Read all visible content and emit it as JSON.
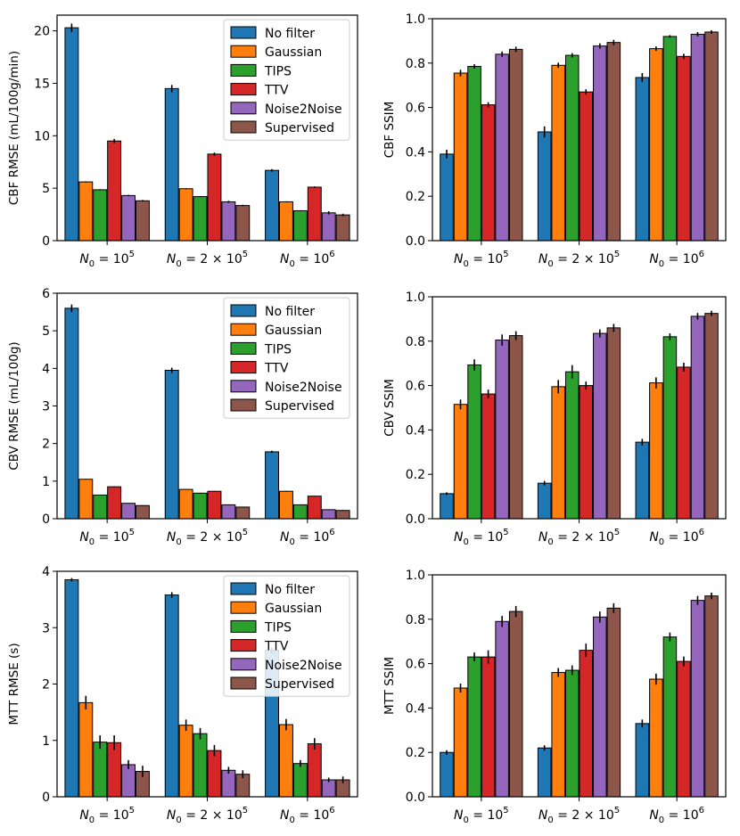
{
  "colors": {
    "No filter": "#1f77b4",
    "Gaussian": "#ff7f0e",
    "TIPS": "#2ca02c",
    "TTV": "#d62728",
    "Noise2Noise": "#9467bd",
    "Supervised": "#8c564b"
  },
  "chart_data": [
    {
      "type": "bar",
      "ylabel": "CBF RMSE (mL/100g/min)",
      "ylim": [
        0,
        21.5
      ],
      "yticks": [
        0,
        5,
        10,
        15,
        20
      ],
      "yticklabels": [
        "0",
        "5",
        "10",
        "15",
        "20"
      ],
      "categories": [
        "N0=10^5",
        "N0=2x10^5",
        "N0=10^6"
      ],
      "legend": "top-right",
      "series": [
        {
          "name": "No filter",
          "values": [
            20.3,
            14.5,
            6.7
          ],
          "errors": [
            0.4,
            0.35,
            0.12
          ]
        },
        {
          "name": "Gaussian",
          "values": [
            5.6,
            4.95,
            3.7
          ],
          "errors": [
            0.05,
            0.05,
            0.05
          ]
        },
        {
          "name": "TIPS",
          "values": [
            4.85,
            4.2,
            2.85
          ],
          "errors": [
            0.05,
            0.05,
            0.05
          ]
        },
        {
          "name": "TTV",
          "values": [
            9.5,
            8.25,
            5.1
          ],
          "errors": [
            0.2,
            0.15,
            0.07
          ]
        },
        {
          "name": "Noise2Noise",
          "values": [
            4.3,
            3.7,
            2.65
          ],
          "errors": [
            0.07,
            0.1,
            0.15
          ]
        },
        {
          "name": "Supervised",
          "values": [
            3.8,
            3.35,
            2.45
          ],
          "errors": [
            0.08,
            0.07,
            0.12
          ]
        }
      ]
    },
    {
      "type": "bar",
      "ylabel": "CBF SSIM",
      "ylim": [
        0,
        1.0
      ],
      "yticks": [
        0,
        0.2,
        0.4,
        0.6,
        0.8,
        1.0
      ],
      "yticklabels": [
        "0.0",
        "0.2",
        "0.4",
        "0.6",
        "0.8",
        "1.0"
      ],
      "categories": [
        "N0=10^5",
        "N0=2x10^5",
        "N0=10^6"
      ],
      "legend": "none",
      "series": [
        {
          "name": "No filter",
          "values": [
            0.39,
            0.49,
            0.735
          ],
          "errors": [
            0.02,
            0.025,
            0.02
          ]
        },
        {
          "name": "Gaussian",
          "values": [
            0.755,
            0.79,
            0.865
          ],
          "errors": [
            0.015,
            0.012,
            0.01
          ]
        },
        {
          "name": "TIPS",
          "values": [
            0.785,
            0.835,
            0.92
          ],
          "errors": [
            0.01,
            0.01,
            0.006
          ]
        },
        {
          "name": "TTV",
          "values": [
            0.612,
            0.67,
            0.83
          ],
          "errors": [
            0.012,
            0.012,
            0.012
          ]
        },
        {
          "name": "Noise2Noise",
          "values": [
            0.84,
            0.877,
            0.93
          ],
          "errors": [
            0.012,
            0.012,
            0.01
          ]
        },
        {
          "name": "Supervised",
          "values": [
            0.862,
            0.893,
            0.94
          ],
          "errors": [
            0.012,
            0.012,
            0.008
          ]
        }
      ]
    },
    {
      "type": "bar",
      "ylabel": "CBV RMSE (mL/100g)",
      "ylim": [
        0,
        6.0
      ],
      "yticks": [
        0,
        1,
        2,
        3,
        4,
        5,
        6
      ],
      "yticklabels": [
        "0",
        "1",
        "2",
        "3",
        "4",
        "5",
        "6"
      ],
      "categories": [
        "N0=10^5",
        "N0=2x10^5",
        "N0=10^6"
      ],
      "legend": "top-right",
      "series": [
        {
          "name": "No filter",
          "values": [
            5.6,
            3.95,
            1.78
          ],
          "errors": [
            0.1,
            0.07,
            0.03
          ]
        },
        {
          "name": "Gaussian",
          "values": [
            1.05,
            0.78,
            0.73
          ],
          "errors": [
            0.01,
            0.01,
            0.01
          ]
        },
        {
          "name": "TIPS",
          "values": [
            0.63,
            0.68,
            0.37
          ],
          "errors": [
            0.01,
            0.01,
            0.01
          ]
        },
        {
          "name": "TTV",
          "values": [
            0.85,
            0.73,
            0.6
          ],
          "errors": [
            0.01,
            0.01,
            0.01
          ]
        },
        {
          "name": "Noise2Noise",
          "values": [
            0.41,
            0.37,
            0.24
          ],
          "errors": [
            0.01,
            0.01,
            0.01
          ]
        },
        {
          "name": "Supervised",
          "values": [
            0.35,
            0.31,
            0.22
          ],
          "errors": [
            0.01,
            0.01,
            0.01
          ]
        }
      ]
    },
    {
      "type": "bar",
      "ylabel": "CBV SSIM",
      "ylim": [
        0,
        1.0
      ],
      "yticks": [
        0,
        0.2,
        0.4,
        0.6,
        0.8,
        1.0
      ],
      "yticklabels": [
        "0.0",
        "0.2",
        "0.4",
        "0.6",
        "0.8",
        "1.0"
      ],
      "categories": [
        "N0=10^5",
        "N0=2x10^5",
        "N0=10^6"
      ],
      "legend": "none",
      "series": [
        {
          "name": "No filter",
          "values": [
            0.113,
            0.16,
            0.345
          ],
          "errors": [
            0.006,
            0.01,
            0.015
          ]
        },
        {
          "name": "Gaussian",
          "values": [
            0.515,
            0.595,
            0.612
          ],
          "errors": [
            0.022,
            0.03,
            0.025
          ]
        },
        {
          "name": "TIPS",
          "values": [
            0.693,
            0.662,
            0.82
          ],
          "errors": [
            0.025,
            0.03,
            0.015
          ]
        },
        {
          "name": "TTV",
          "values": [
            0.562,
            0.6,
            0.683
          ],
          "errors": [
            0.02,
            0.018,
            0.02
          ]
        },
        {
          "name": "Noise2Noise",
          "values": [
            0.805,
            0.835,
            0.912
          ],
          "errors": [
            0.025,
            0.018,
            0.015
          ]
        },
        {
          "name": "Supervised",
          "values": [
            0.825,
            0.86,
            0.925
          ],
          "errors": [
            0.02,
            0.018,
            0.012
          ]
        }
      ]
    },
    {
      "type": "bar",
      "ylabel": "MTT RMSE (s)",
      "ylim": [
        0,
        4.0
      ],
      "yticks": [
        0,
        1,
        2,
        3,
        4
      ],
      "yticklabels": [
        "0",
        "1",
        "2",
        "3",
        "4"
      ],
      "categories": [
        "N0=10^5",
        "N0=2x10^5",
        "N0=10^6"
      ],
      "legend": "top-right",
      "series": [
        {
          "name": "No filter",
          "values": [
            3.85,
            3.58,
            2.6
          ],
          "errors": [
            0.03,
            0.05,
            0.05
          ]
        },
        {
          "name": "Gaussian",
          "values": [
            1.67,
            1.27,
            1.28
          ],
          "errors": [
            0.12,
            0.1,
            0.1
          ]
        },
        {
          "name": "TIPS",
          "values": [
            0.97,
            1.12,
            0.59
          ],
          "errors": [
            0.12,
            0.1,
            0.06
          ]
        },
        {
          "name": "TTV",
          "values": [
            0.96,
            0.82,
            0.94
          ],
          "errors": [
            0.13,
            0.1,
            0.1
          ]
        },
        {
          "name": "Noise2Noise",
          "values": [
            0.57,
            0.47,
            0.3
          ],
          "errors": [
            0.08,
            0.06,
            0.04
          ]
        },
        {
          "name": "Supervised",
          "values": [
            0.45,
            0.4,
            0.3
          ],
          "errors": [
            0.1,
            0.07,
            0.06
          ]
        }
      ]
    },
    {
      "type": "bar",
      "ylabel": "MTT SSIM",
      "ylim": [
        0,
        1.0
      ],
      "yticks": [
        0,
        0.2,
        0.4,
        0.6,
        0.8,
        1.0
      ],
      "yticklabels": [
        "0.0",
        "0.2",
        "0.4",
        "0.6",
        "0.8",
        "1.0"
      ],
      "categories": [
        "N0=10^5",
        "N0=2x10^5",
        "N0=10^6"
      ],
      "legend": "none",
      "series": [
        {
          "name": "No filter",
          "values": [
            0.2,
            0.22,
            0.33
          ],
          "errors": [
            0.01,
            0.012,
            0.018
          ]
        },
        {
          "name": "Gaussian",
          "values": [
            0.49,
            0.56,
            0.53
          ],
          "errors": [
            0.02,
            0.02,
            0.025
          ]
        },
        {
          "name": "TIPS",
          "values": [
            0.63,
            0.57,
            0.72
          ],
          "errors": [
            0.02,
            0.022,
            0.02
          ]
        },
        {
          "name": "TTV",
          "values": [
            0.63,
            0.66,
            0.61
          ],
          "errors": [
            0.03,
            0.03,
            0.022
          ]
        },
        {
          "name": "Noise2Noise",
          "values": [
            0.79,
            0.81,
            0.885
          ],
          "errors": [
            0.025,
            0.025,
            0.02
          ]
        },
        {
          "name": "Supervised",
          "values": [
            0.835,
            0.85,
            0.905
          ],
          "errors": [
            0.025,
            0.022,
            0.015
          ]
        }
      ]
    }
  ],
  "xtick_parts": [
    {
      "base": "N",
      "sub": "0",
      "mid": " = ",
      "exp": "5",
      "pre": "10"
    },
    {
      "base": "N",
      "sub": "0",
      "mid": " = 2 × ",
      "exp": "5",
      "pre": "10"
    },
    {
      "base": "N",
      "sub": "0",
      "mid": " = ",
      "exp": "6",
      "pre": "10"
    }
  ]
}
